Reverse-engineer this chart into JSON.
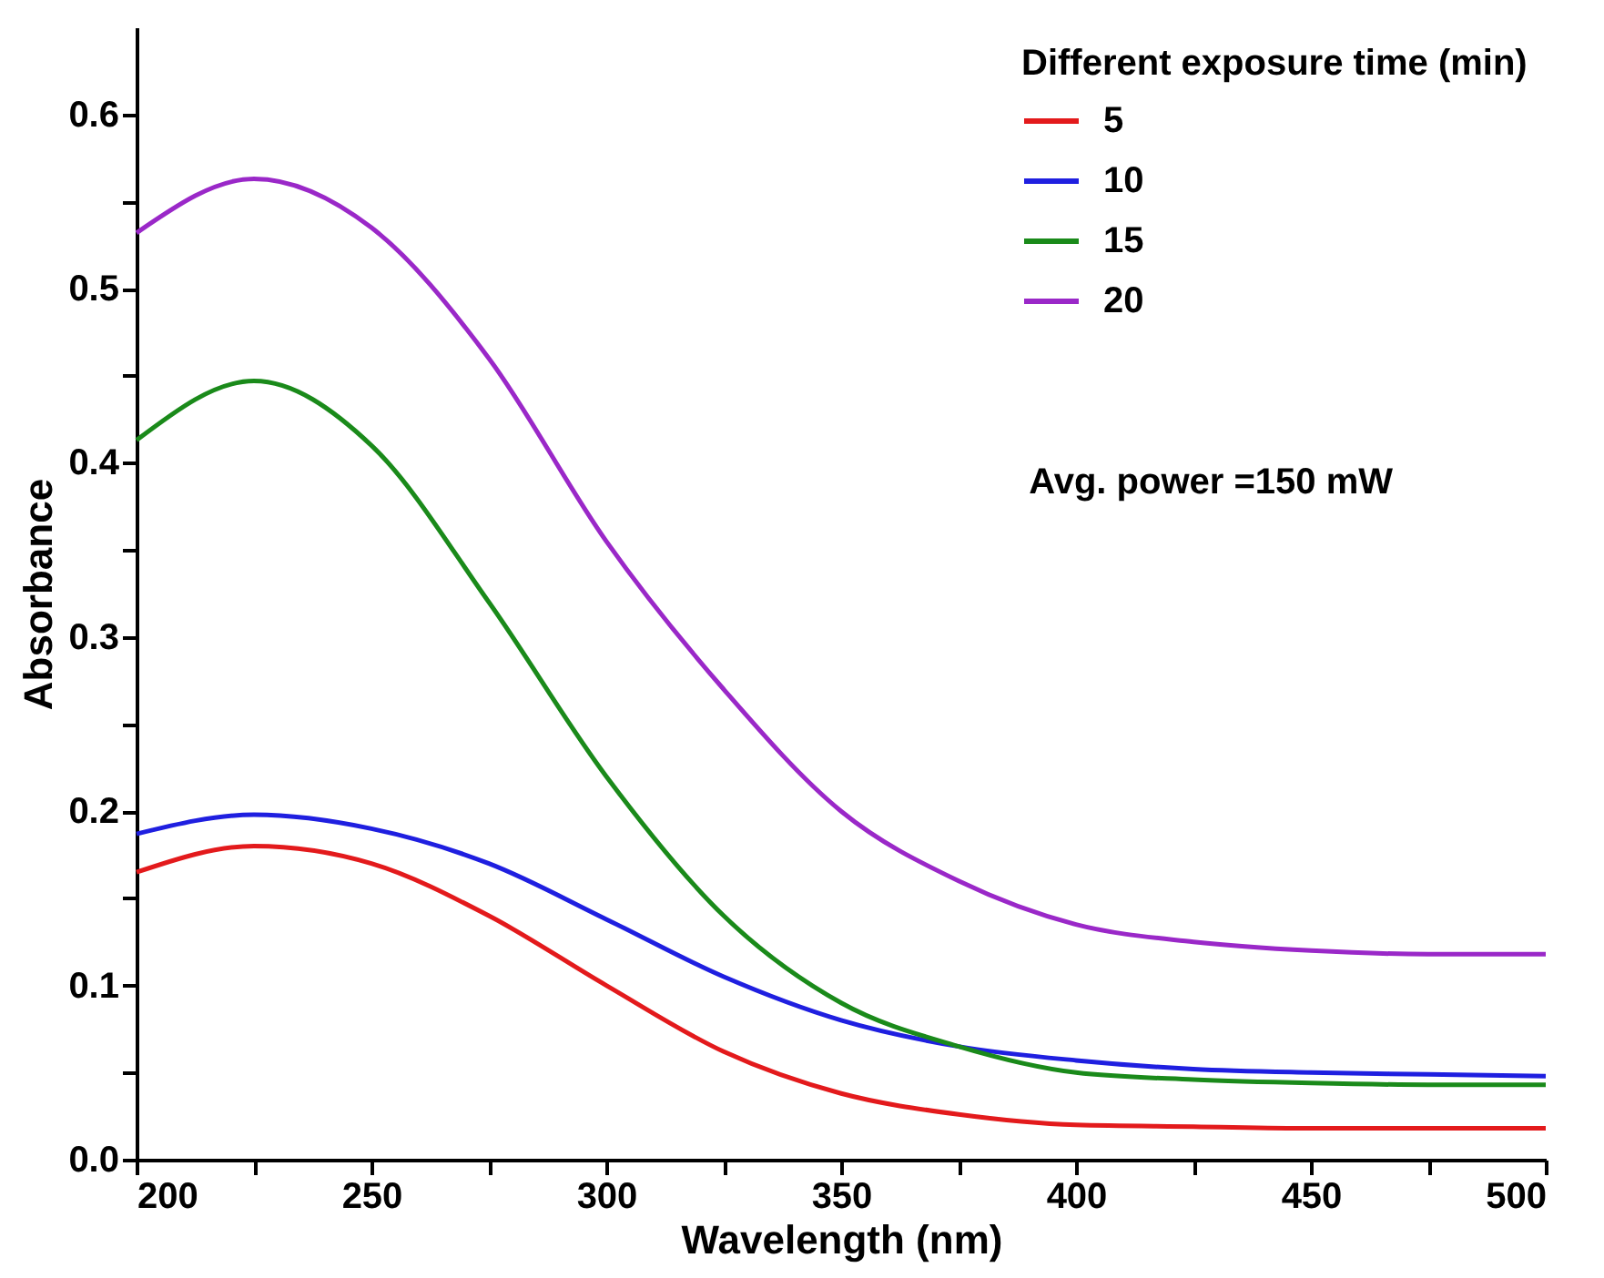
{
  "chart_data": {
    "type": "line",
    "xlabel": "Wavelength (nm)",
    "ylabel": "Absorbance",
    "legend_title": "Different exposure time (min)",
    "legend": "top right",
    "grid": false,
    "marker": "none",
    "line_style": "solid",
    "x": [
      200,
      225,
      250,
      275,
      300,
      325,
      350,
      375,
      400,
      425,
      450,
      475,
      500
    ],
    "xlim": [
      200,
      500
    ],
    "ylim": [
      0,
      0.65
    ],
    "xticks": [
      200,
      {
        "value": 225,
        "label": null
      },
      250,
      {
        "value": 275,
        "label": null
      },
      300,
      {
        "value": 325,
        "label": null
      },
      350,
      {
        "value": 375,
        "label": null
      },
      400,
      {
        "value": 425,
        "label": null
      },
      450,
      {
        "value": 475,
        "label": null
      },
      500
    ],
    "yticks": [
      {
        "value": 0,
        "label": "0.0"
      },
      {
        "value": 0.05,
        "label": null
      },
      0.1,
      {
        "value": 0.15,
        "label": null
      },
      0.2,
      {
        "value": 0.25,
        "label": null
      },
      0.3,
      {
        "value": 0.35,
        "label": null
      },
      0.4,
      {
        "value": 0.45,
        "label": null
      },
      0.5,
      {
        "value": 0.55,
        "label": null
      },
      0.6
    ],
    "series": [
      {
        "name": "5",
        "color": "#e31a1c",
        "values": [
          0.165,
          0.18,
          0.17,
          0.14,
          0.1,
          0.062,
          0.038,
          0.026,
          0.02,
          0.019,
          0.018,
          0.018,
          0.018
        ]
      },
      {
        "name": "10",
        "color": "#1f1fe0",
        "values": [
          0.187,
          0.198,
          0.19,
          0.17,
          0.138,
          0.105,
          0.08,
          0.065,
          0.057,
          0.052,
          0.05,
          0.049,
          0.048
        ]
      },
      {
        "name": "15",
        "color": "#1a8a1a",
        "values": [
          0.413,
          0.447,
          0.41,
          0.32,
          0.22,
          0.14,
          0.09,
          0.065,
          0.05,
          0.046,
          0.044,
          0.043,
          0.043
        ]
      },
      {
        "name": "20",
        "color": "#9a28c8",
        "values": [
          0.532,
          0.563,
          0.535,
          0.46,
          0.355,
          0.27,
          0.2,
          0.16,
          0.135,
          0.125,
          0.12,
          0.118,
          0.118
        ]
      }
    ],
    "annotations": [
      "Avg. power =150 mW"
    ]
  }
}
